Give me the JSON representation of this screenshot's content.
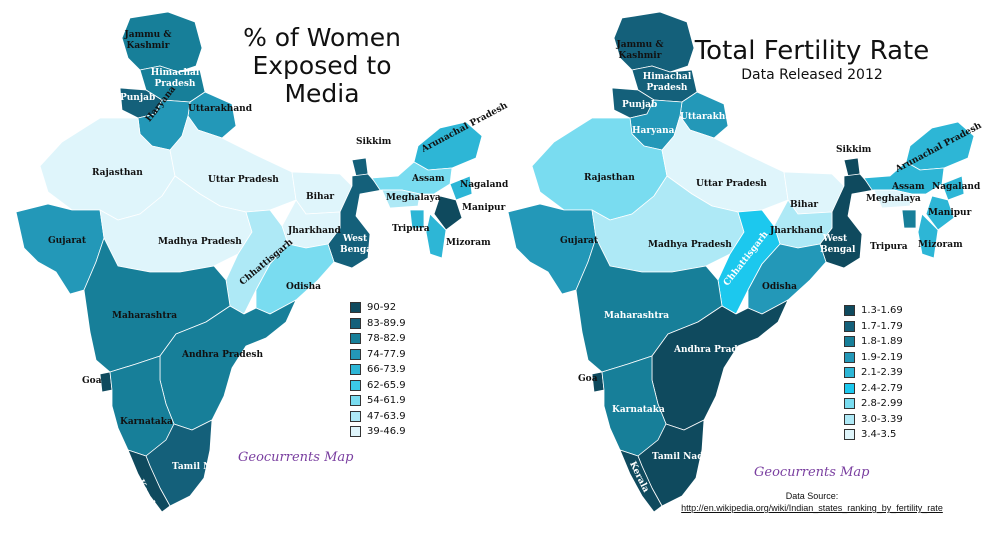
{
  "left_map": {
    "title": "% of Women Exposed to Media",
    "legend": [
      {
        "label": "90-92",
        "color": "#0f4a5e"
      },
      {
        "label": "83-89.9",
        "color": "#14607a"
      },
      {
        "label": "78-82.9",
        "color": "#177f99"
      },
      {
        "label": "74-77.9",
        "color": "#2398b8"
      },
      {
        "label": "66-73.9",
        "color": "#2db6d6"
      },
      {
        "label": "62-65.9",
        "color": "#3ccbe8"
      },
      {
        "label": "54-61.9",
        "color": "#79dcf0"
      },
      {
        "label": "47-63.9",
        "color": "#aee9f6"
      },
      {
        "label": "39-46.9",
        "color": "#dff5fb"
      }
    ],
    "labels": {
      "jk": "Jammu & Kashmir",
      "hp": "Himachal Pradesh",
      "pb": "Punjab",
      "uk": "Uttarakhand",
      "hr": "Haryana",
      "rj": "Rajasthan",
      "up": "Uttar Pradesh",
      "br": "Bihar",
      "sk": "Sikkim",
      "ar": "Arunachal Pradesh",
      "as": "Assam",
      "ml": "Meghalaya",
      "nl": "Nagaland",
      "mn": "Manipur",
      "tr": "Tripura",
      "mz": "Mizoram",
      "gj": "Gujarat",
      "mp": "Madhya Pradesh",
      "jh": "Jharkhand",
      "wb": "West Bengal",
      "cg": "Chhattisgarh",
      "od": "Odisha",
      "mh": "Maharashtra",
      "ap": "Andhra Pradesh",
      "ga": "Goa",
      "ka": "Karnataka",
      "tn": "Tamil Nadu",
      "kl": "Kerala"
    },
    "credit": "Geocurrents Map"
  },
  "right_map": {
    "title": "Total Fertility Rate",
    "subtitle": "Data Released 2012",
    "legend": [
      {
        "label": "1.3-1.69",
        "color": "#0f4a5e"
      },
      {
        "label": "1.7-1.79",
        "color": "#14607a"
      },
      {
        "label": "1.8-1.89",
        "color": "#177f99"
      },
      {
        "label": "1.9-2.19",
        "color": "#2398b8"
      },
      {
        "label": "2.1-2.39",
        "color": "#2db6d6"
      },
      {
        "label": "2.4-2.79",
        "color": "#1cc8ee"
      },
      {
        "label": "2.8-2.99",
        "color": "#79dcf0"
      },
      {
        "label": "3.0-3.39",
        "color": "#aee9f6"
      },
      {
        "label": "3.4-3.5",
        "color": "#dff5fb"
      }
    ],
    "labels": {
      "jk": "Jammu & Kashmir",
      "hp": "Himachal Pradesh",
      "pb": "Punjab",
      "uk": "Uttarakhand",
      "hr": "Haryana",
      "rj": "Rajasthan",
      "up": "Uttar Pradesh",
      "br": "Bihar",
      "sk": "Sikkim",
      "ar": "Arunachal Pradesh",
      "as": "Assam",
      "ml": "Meghalaya",
      "nl": "Nagaland",
      "mn": "Manipur",
      "tr": "Tripura",
      "mz": "Mizoram",
      "gj": "Gujarat",
      "mp": "Madhya Pradesh",
      "jh": "Jharkhand",
      "wb": "West Bengal",
      "cg": "Chhattisgarh",
      "od": "Odisha",
      "mh": "Maharashtra",
      "ap": "Andhra Pradesh",
      "ga": "Goa",
      "ka": "Karnataka",
      "tn": "Tamil Nadu",
      "kl": "Kerala"
    },
    "credit": "Geocurrents Map",
    "source_label": "Data Source:",
    "source_url": "http://en.wikipedia.org/wiki/Indian_states_ranking_by_fertility_rate"
  },
  "state_colors": {
    "left": {
      "jk": "#177f99",
      "hp": "#177f99",
      "pb": "#14607a",
      "uk": "#2398b8",
      "hr": "#2398b8",
      "rj": "#dff5fb",
      "up": "#dff5fb",
      "br": "#dff5fb",
      "sk": "#14607a",
      "ar": "#2db6d6",
      "as": "#79dcf0",
      "ml": "#aee9f6",
      "nl": "#2db6d6",
      "mn": "#0f4a5e",
      "tr": "#2db6d6",
      "mz": "#2db6d6",
      "gj": "#2398b8",
      "mp": "#dff5fb",
      "jh": "#dff5fb",
      "wb": "#14607a",
      "cg": "#aee9f6",
      "od": "#79dcf0",
      "mh": "#177f99",
      "ap": "#177f99",
      "ga": "#0f4a5e",
      "ka": "#177f99",
      "tn": "#14607a",
      "kl": "#0f4a5e"
    },
    "right": {
      "jk": "#14607a",
      "hp": "#14607a",
      "pb": "#14607a",
      "uk": "#2398b8",
      "hr": "#2398b8",
      "rj": "#79dcf0",
      "up": "#dff5fb",
      "br": "#dff5fb",
      "sk": "#0f4a5e",
      "ar": "#2db6d6",
      "as": "#2db6d6",
      "ml": "#dff5fb",
      "nl": "#2db6d6",
      "mn": "#2db6d6",
      "tr": "#177f99",
      "mz": "#2db6d6",
      "gj": "#2398b8",
      "mp": "#aee9f6",
      "jh": "#aee9f6",
      "wb": "#0f4a5e",
      "cg": "#1cc8ee",
      "od": "#2398b8",
      "mh": "#177f99",
      "ap": "#0f4a5e",
      "ga": "#0f4a5e",
      "ka": "#177f99",
      "tn": "#0f4a5e",
      "kl": "#0f4a5e"
    }
  }
}
